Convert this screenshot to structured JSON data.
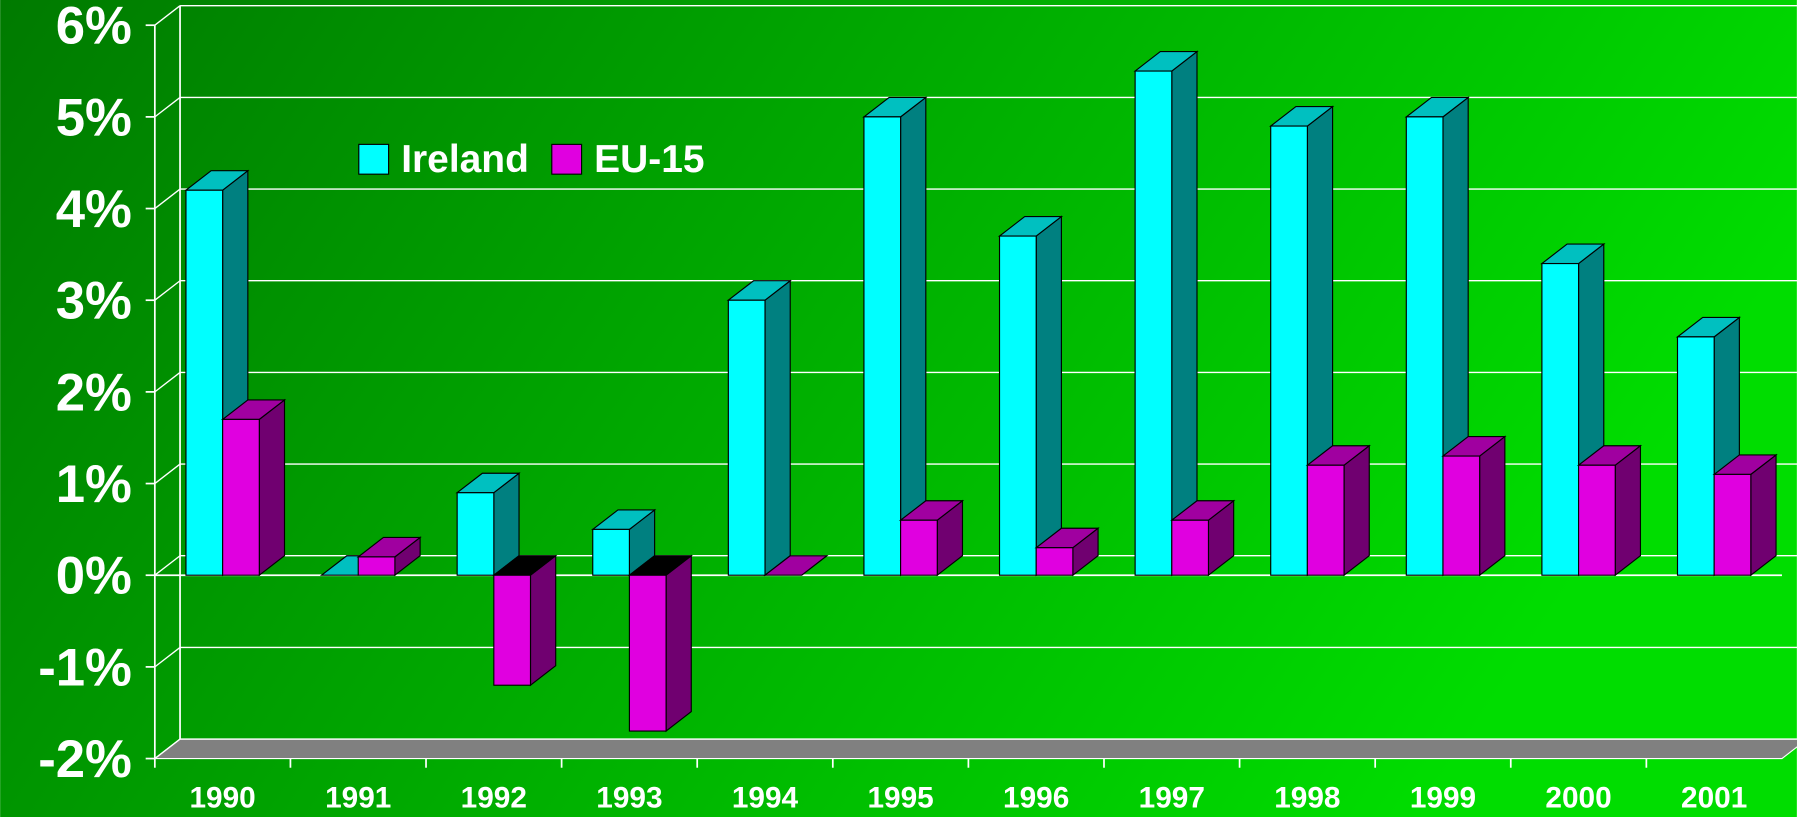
{
  "chart_data": {
    "type": "bar3d",
    "categories": [
      "1990",
      "1991",
      "1992",
      "1993",
      "1994",
      "1995",
      "1996",
      "1997",
      "1998",
      "1999",
      "2000",
      "2001"
    ],
    "series": [
      {
        "name": "Ireland",
        "color": "#00ffff",
        "values": [
          4.2,
          0.0,
          0.9,
          0.5,
          3.0,
          5.0,
          3.7,
          5.5,
          4.9,
          5.0,
          3.4,
          2.6
        ]
      },
      {
        "name": "EU-15",
        "color": "#e000e0",
        "values": [
          1.7,
          0.2,
          -1.2,
          -1.7,
          0.0,
          0.6,
          0.3,
          0.6,
          1.2,
          1.3,
          1.2,
          1.1
        ]
      }
    ],
    "ylim": [
      -2,
      6
    ],
    "yticks": [
      {
        "value": -2,
        "label": "-2%"
      },
      {
        "value": -1,
        "label": "-1%"
      },
      {
        "value": 0,
        "label": "0%"
      },
      {
        "value": 1,
        "label": "1%"
      },
      {
        "value": 2,
        "label": "2%"
      },
      {
        "value": 3,
        "label": "3%"
      },
      {
        "value": 4,
        "label": "4%"
      },
      {
        "value": 5,
        "label": "5%"
      },
      {
        "value": 6,
        "label": "6%"
      }
    ],
    "grid": true,
    "legend": "top-left"
  }
}
